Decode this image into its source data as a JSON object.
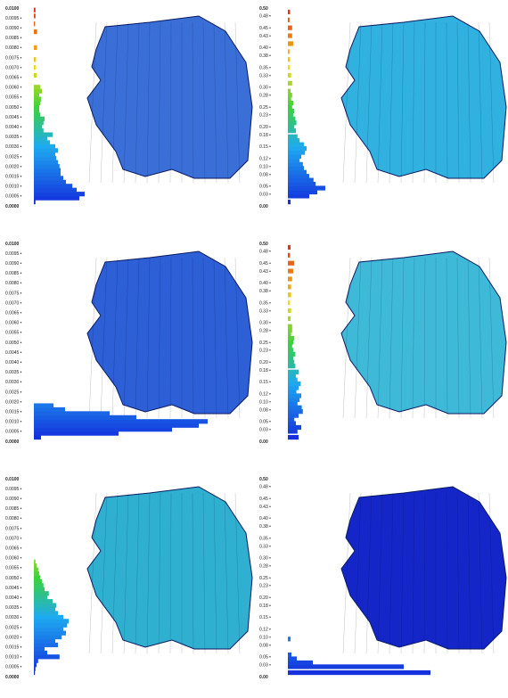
{
  "chart_data": [
    {
      "type": "bar",
      "orientation": "horizontal",
      "ylim": [
        0,
        0.01
      ],
      "tick_labels": [
        "0.0100",
        "0.0095",
        "0.0090",
        "0.0085",
        "0.0080",
        "0.0075",
        "0.0070",
        "0.0065",
        "0.0060",
        "0.0055",
        "0.0050",
        "0.0045",
        "0.0040",
        "0.0035",
        "0.0030",
        "0.0025",
        "0.0020",
        "0.0015",
        "0.0010",
        "0.0005",
        "0.0000"
      ],
      "bins": [
        0.0002,
        0.0004,
        0.0006,
        0.0008,
        0.001,
        0.0012,
        0.0014,
        0.0016,
        0.0018,
        0.002,
        0.0022,
        0.0024,
        0.0026,
        0.0028,
        0.003,
        0.0032,
        0.0034,
        0.0036,
        0.0038,
        0.004,
        0.0042,
        0.0044,
        0.0046,
        0.0048,
        0.005,
        0.0052,
        0.0054,
        0.0056,
        0.0058,
        0.006,
        0.0066,
        0.007,
        0.0074,
        0.008,
        0.0088,
        0.0092,
        0.0096,
        0.0099
      ],
      "values": [
        3,
        85,
        95,
        80,
        72,
        60,
        55,
        50,
        50,
        48,
        45,
        42,
        40,
        45,
        40,
        30,
        25,
        35,
        18,
        15,
        18,
        20,
        12,
        10,
        10,
        12,
        14,
        10,
        15,
        12,
        5,
        4,
        4,
        6,
        6,
        2,
        3,
        3
      ],
      "mesh_color": "#3a6fd8"
    },
    {
      "type": "bar",
      "orientation": "horizontal",
      "ylim": [
        0,
        0.5
      ],
      "tick_labels": [
        "0.50",
        "0.48",
        "0.45",
        "0.43",
        "0.40",
        "0.38",
        "0.35",
        "0.33",
        "0.30",
        "0.28",
        "0.25",
        "0.23",
        "0.20",
        "0.18",
        "0.15",
        "0.12",
        "0.10",
        "0.08",
        "0.05",
        "0.03",
        "0.00"
      ],
      "bins": [
        0.01,
        0.025,
        0.035,
        0.045,
        0.055,
        0.065,
        0.075,
        0.085,
        0.095,
        0.105,
        0.115,
        0.125,
        0.135,
        0.145,
        0.155,
        0.165,
        0.175,
        0.19,
        0.2,
        0.21,
        0.22,
        0.23,
        0.24,
        0.25,
        0.26,
        0.27,
        0.28,
        0.29,
        0.31,
        0.33,
        0.35,
        0.37,
        0.39,
        0.41,
        0.43,
        0.45,
        0.47,
        0.49
      ],
      "values": [
        5,
        40,
        55,
        70,
        52,
        48,
        40,
        35,
        30,
        28,
        22,
        25,
        32,
        35,
        30,
        22,
        18,
        15,
        12,
        16,
        14,
        10,
        12,
        8,
        10,
        6,
        8,
        5,
        8,
        6,
        4,
        4,
        3,
        10,
        8,
        8,
        3,
        4
      ],
      "mesh_color": "#31b1e0"
    },
    {
      "type": "bar",
      "orientation": "horizontal",
      "ylim": [
        0,
        0.01
      ],
      "tick_labels": [
        "0.0100",
        "0.0095",
        "0.0090",
        "0.0085",
        "0.0080",
        "0.0075",
        "0.0070",
        "0.0065",
        "0.0060",
        "0.0055",
        "0.0050",
        "0.0045",
        "0.0040",
        "0.0035",
        "0.0030",
        "0.0025",
        "0.0020",
        "0.0015",
        "0.0010",
        "0.0005",
        "0.0000"
      ],
      "bins": [
        0.0002,
        0.0004,
        0.0006,
        0.0008,
        0.001,
        0.0012,
        0.0014,
        0.0016,
        0.0018
      ],
      "values": [
        8,
        95,
        155,
        185,
        195,
        115,
        85,
        35,
        22
      ],
      "mesh_color": "#2d5fd6"
    },
    {
      "type": "bar",
      "orientation": "horizontal",
      "ylim": [
        0,
        0.5
      ],
      "tick_labels": [
        "0.50",
        "0.48",
        "0.45",
        "0.43",
        "0.40",
        "0.38",
        "0.35",
        "0.33",
        "0.30",
        "0.28",
        "0.25",
        "0.23",
        "0.20",
        "0.18",
        "0.15",
        "0.12",
        "0.10",
        "0.08",
        "0.05",
        "0.03",
        "0.00"
      ],
      "bins": [
        0.01,
        0.025,
        0.035,
        0.045,
        0.055,
        0.065,
        0.075,
        0.085,
        0.095,
        0.105,
        0.115,
        0.125,
        0.135,
        0.145,
        0.155,
        0.165,
        0.175,
        0.19,
        0.2,
        0.21,
        0.22,
        0.23,
        0.24,
        0.25,
        0.26,
        0.27,
        0.28,
        0.29,
        0.31,
        0.33,
        0.35,
        0.37,
        0.39,
        0.41,
        0.43,
        0.45,
        0.47,
        0.49
      ],
      "values": [
        20,
        18,
        25,
        15,
        12,
        20,
        28,
        26,
        18,
        22,
        25,
        16,
        20,
        24,
        18,
        15,
        20,
        14,
        12,
        10,
        14,
        10,
        8,
        10,
        12,
        6,
        8,
        8,
        5,
        6,
        4,
        6,
        6,
        8,
        10,
        12,
        4,
        5
      ],
      "mesh_color": "#3fb9d8"
    },
    {
      "type": "bar",
      "orientation": "horizontal",
      "ylim": [
        0,
        0.01
      ],
      "tick_labels": [
        "0.0100",
        "0.0095",
        "0.0090",
        "0.0085",
        "0.0080",
        "0.0075",
        "0.0070",
        "0.0065",
        "0.0060",
        "0.0055",
        "0.0050",
        "0.0045",
        "0.0040",
        "0.0035",
        "0.0030",
        "0.0025",
        "0.0020",
        "0.0015",
        "0.0010",
        "0.0005",
        "0.0000"
      ],
      "bins": [
        0.0002,
        0.0004,
        0.0006,
        0.0008,
        0.001,
        0.0012,
        0.0014,
        0.0016,
        0.0018,
        0.002,
        0.0022,
        0.0024,
        0.0026,
        0.0028,
        0.003,
        0.0032,
        0.0034,
        0.0036,
        0.0038,
        0.004,
        0.0042,
        0.0044,
        0.0046,
        0.0048,
        0.005,
        0.0052,
        0.0054,
        0.0056,
        0.0058
      ],
      "values": [
        2,
        3,
        5,
        8,
        48,
        25,
        20,
        45,
        40,
        52,
        60,
        55,
        62,
        65,
        55,
        45,
        40,
        42,
        35,
        25,
        28,
        20,
        18,
        15,
        12,
        10,
        8,
        5,
        3
      ],
      "mesh_color": "#2fb0d0"
    },
    {
      "type": "bar",
      "orientation": "horizontal",
      "ylim": [
        0,
        0.5
      ],
      "tick_labels": [
        "0.50",
        "0.48",
        "0.45",
        "0.43",
        "0.40",
        "0.38",
        "0.35",
        "0.33",
        "0.30",
        "0.28",
        "0.25",
        "0.23",
        "0.20",
        "0.18",
        "0.15",
        "0.12",
        "0.10",
        "0.08",
        "0.05",
        "0.03",
        "0.00"
      ],
      "bins": [
        0.01,
        0.025,
        0.035,
        0.045,
        0.055,
        0.095
      ],
      "values": [
        160,
        130,
        28,
        10,
        4,
        3
      ],
      "mesh_color": "#1426c8"
    }
  ]
}
